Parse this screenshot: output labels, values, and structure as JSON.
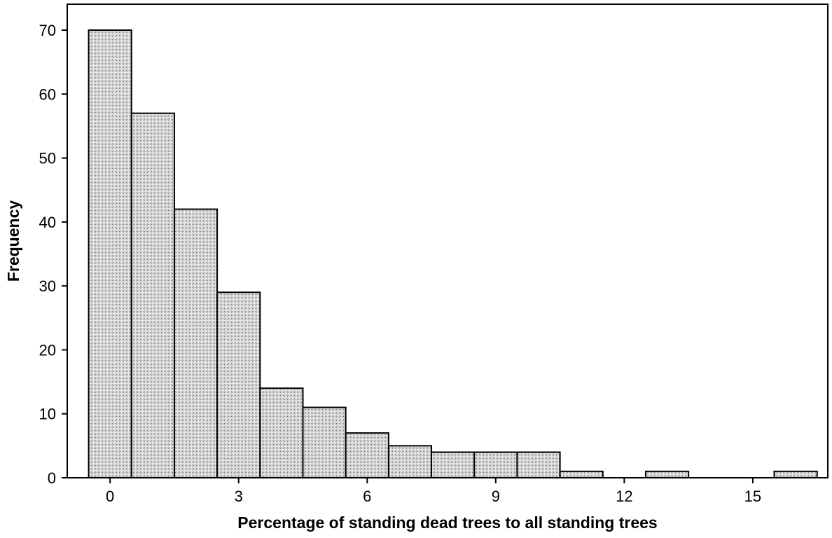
{
  "chart_data": {
    "type": "bar",
    "title": "",
    "xlabel": "Percentage of standing dead trees to all standing trees",
    "ylabel": "Frequency",
    "xlim": [
      -1.0,
      16.75
    ],
    "ylim": [
      0,
      70
    ],
    "x_ticks": [
      0,
      3,
      6,
      9,
      12,
      15
    ],
    "y_ticks": [
      0,
      10,
      20,
      30,
      40,
      50,
      60,
      70
    ],
    "bin_width": 1,
    "bins": [
      {
        "x": 0,
        "value": 70
      },
      {
        "x": 1,
        "value": 57
      },
      {
        "x": 2,
        "value": 42
      },
      {
        "x": 3,
        "value": 29
      },
      {
        "x": 4,
        "value": 14
      },
      {
        "x": 5,
        "value": 11
      },
      {
        "x": 6,
        "value": 7
      },
      {
        "x": 7,
        "value": 5
      },
      {
        "x": 8,
        "value": 4
      },
      {
        "x": 9,
        "value": 4
      },
      {
        "x": 10,
        "value": 4
      },
      {
        "x": 11,
        "value": 1
      },
      {
        "x": 12,
        "value": 0
      },
      {
        "x": 13,
        "value": 1
      },
      {
        "x": 14,
        "value": 0
      },
      {
        "x": 15,
        "value": 0
      },
      {
        "x": 16,
        "value": 1
      }
    ],
    "grid": false,
    "legend": "none",
    "colors": {
      "bar_fill": "#d9d9d9",
      "bar_stroke": "#000000",
      "axis": "#000000"
    }
  }
}
